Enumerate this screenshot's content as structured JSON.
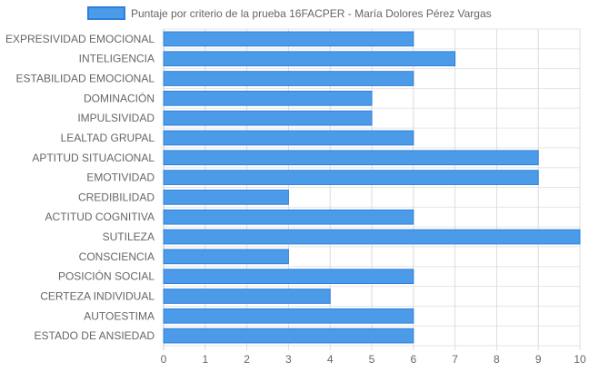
{
  "chart_data": {
    "type": "bar",
    "orientation": "horizontal",
    "categories": [
      "EXPRESIVIDAD EMOCIONAL",
      "INTELIGENCIA",
      "ESTABILIDAD EMOCIONAL",
      "DOMINACIÓN",
      "IMPULSIVIDAD",
      "LEALTAD GRUPAL",
      "APTITUD SITUACIONAL",
      "EMOTIVIDAD",
      "CREDIBILIDAD",
      "ACTITUD COGNITIVA",
      "SUTILEZA",
      "CONSCIENCIA",
      "POSICIÓN SOCIAL",
      "CERTEZA INDIVIDUAL",
      "AUTOESTIMA",
      "ESTADO DE ANSIEDAD"
    ],
    "series": [
      {
        "name": "Puntaje por criterio de la prueba 16FACPER - María Dolores Pérez Vargas",
        "values": [
          6,
          7,
          6,
          5,
          5,
          6,
          9,
          9,
          3,
          6,
          10,
          3,
          6,
          4,
          6,
          6
        ],
        "color": "#4c9be8",
        "border_color": "#2f80dc"
      }
    ],
    "xlim": [
      0,
      10
    ],
    "x_ticks": [
      "0",
      "1",
      "2",
      "3",
      "4",
      "5",
      "6",
      "7",
      "8",
      "9",
      "10"
    ],
    "grid": true,
    "legend_position": "top"
  }
}
